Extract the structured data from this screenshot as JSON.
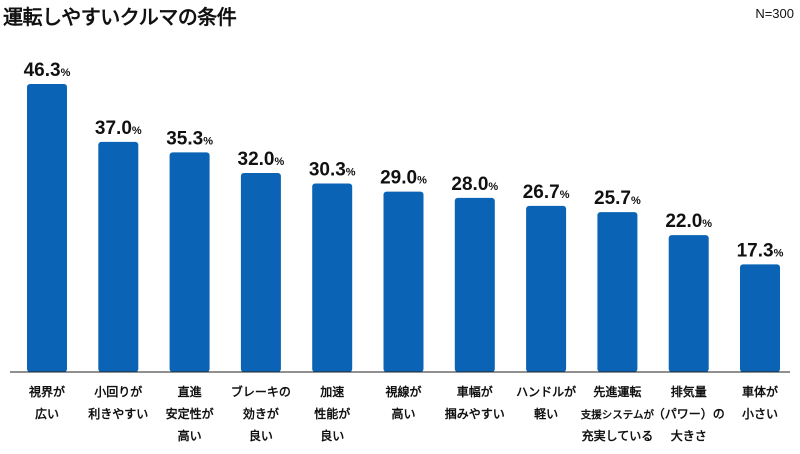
{
  "chart_data": {
    "type": "bar",
    "title": "運転しやすいクルマの条件",
    "sample_note": "N=300",
    "unit": "%",
    "bar_color": "#0b63b5",
    "ylim": [
      0,
      50
    ],
    "categories": [
      [
        "視界が",
        "広い"
      ],
      [
        "小回りが",
        "利きやすい"
      ],
      [
        "直進",
        "安定性が",
        "高い"
      ],
      [
        "ブレーキの",
        "効きが",
        "良い"
      ],
      [
        "加速",
        "性能が",
        "良い"
      ],
      [
        "視線が",
        "高い"
      ],
      [
        "車幅が",
        "掴みやすい"
      ],
      [
        "ハンドルが",
        "軽い"
      ],
      [
        "先進運転",
        "支援システムが",
        "充実している"
      ],
      [
        "排気量",
        "（パワー）の",
        "大きさ"
      ],
      [
        "車体が",
        "小さい"
      ]
    ],
    "values": [
      46.3,
      37.0,
      35.3,
      32.0,
      30.3,
      29.0,
      28.0,
      26.7,
      25.7,
      22.0,
      17.3
    ],
    "value_labels": [
      "46.3",
      "37.0",
      "35.3",
      "32.0",
      "30.3",
      "29.0",
      "28.0",
      "26.7",
      "25.7",
      "22.0",
      "17.3"
    ]
  }
}
